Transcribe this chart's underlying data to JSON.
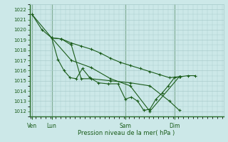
{
  "xlabel": "Pression niveau de la mer( hPa )",
  "bg_color": "#cce8e8",
  "grid_color": "#aacccc",
  "line_color": "#1a5c1a",
  "marker_color": "#1a5c1a",
  "tick_color": "#1a5c1a",
  "spine_color": "#2a6e2a",
  "ylim": [
    1011.5,
    1022.5
  ],
  "yticks": [
    1012,
    1013,
    1014,
    1015,
    1016,
    1017,
    1018,
    1019,
    1020,
    1021,
    1022
  ],
  "xlim": [
    -0.05,
    7.85
  ],
  "xtick_labels": [
    "Ven",
    "Lun",
    "Sam",
    "Dim"
  ],
  "xtick_positions": [
    0.05,
    0.85,
    3.85,
    5.85
  ],
  "vline_positions": [
    0.05,
    0.85,
    3.85,
    5.85
  ],
  "series": [
    {
      "x": [
        0.05,
        0.45,
        0.85,
        1.1,
        1.35,
        1.6,
        1.85,
        2.1,
        2.4,
        2.75,
        3.15,
        3.55,
        3.85,
        4.1,
        4.35,
        4.6,
        4.85,
        5.1,
        5.35,
        5.6,
        5.85,
        6.1,
        6.4,
        6.7
      ],
      "y": [
        1021.5,
        1020.0,
        1019.2,
        1017.1,
        1016.0,
        1015.3,
        1015.2,
        1016.2,
        1015.3,
        1014.8,
        1014.7,
        1014.7,
        1013.2,
        1013.4,
        1013.0,
        1012.1,
        1012.2,
        1013.2,
        1013.8,
        1014.5,
        1015.3,
        1015.4,
        1015.5,
        1015.5
      ]
    },
    {
      "x": [
        0.05,
        0.85,
        1.25,
        1.65,
        2.05,
        2.45,
        2.85,
        3.25,
        3.65,
        4.05,
        4.45,
        4.85,
        5.25,
        5.65,
        6.05
      ],
      "y": [
        1021.5,
        1019.2,
        1019.1,
        1018.7,
        1018.4,
        1018.1,
        1017.7,
        1017.2,
        1016.8,
        1016.5,
        1016.2,
        1015.9,
        1015.6,
        1015.3,
        1015.4
      ]
    },
    {
      "x": [
        0.85,
        1.25,
        1.65,
        2.05,
        2.45,
        3.25,
        4.05,
        4.85,
        5.65,
        6.05
      ],
      "y": [
        1019.2,
        1019.1,
        1018.5,
        1015.2,
        1015.2,
        1015.0,
        1014.8,
        1014.5,
        1013.0,
        1012.1
      ]
    },
    {
      "x": [
        0.85,
        1.65,
        2.45,
        3.25,
        4.05,
        4.85,
        6.05
      ],
      "y": [
        1019.2,
        1017.0,
        1016.3,
        1015.2,
        1014.5,
        1012.0,
        1015.4
      ]
    }
  ]
}
